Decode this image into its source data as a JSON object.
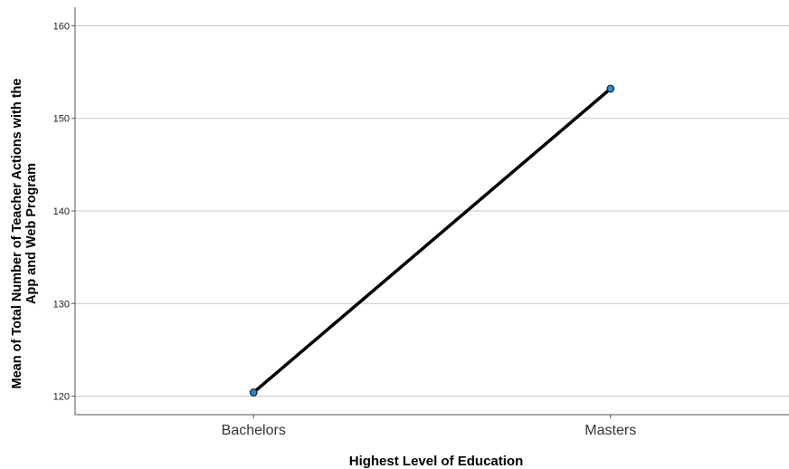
{
  "chart_data": {
    "type": "line",
    "categories": [
      "Bachelors",
      "Masters"
    ],
    "series": [
      {
        "values": [
          120.4,
          153.2
        ]
      }
    ],
    "xlabel": "Highest Level of Education",
    "ylabel_lines": [
      "Mean of Total Number of Teacher Actions with the",
      "App and Web Program"
    ],
    "ylim": [
      118,
      162
    ],
    "yticks": [
      120,
      130,
      140,
      150,
      160
    ],
    "grid": "horizontal",
    "colors": {
      "line": "#000000",
      "marker_fill": "#1f8fd6",
      "marker_stroke": "#222222",
      "grid": "#c8c8c8",
      "axis": "#555555"
    }
  }
}
